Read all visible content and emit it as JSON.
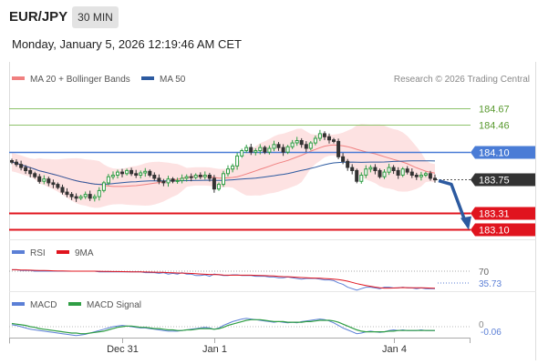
{
  "header": {
    "symbol": "EUR/JPY",
    "timeframe": "30 MIN",
    "timestamp": "Monday, January 5, 2026 12:19:46 AM CET"
  },
  "colors": {
    "ma20": "#f08080",
    "bollinger_fill": "#fde2e2",
    "ma50": "#2c5aa0",
    "resistance": "#8dc26a",
    "resistance_text": "#5a9a30",
    "pivot": "#4a7cd6",
    "support": "#e0141e",
    "current": "#333333",
    "candle_up": "#2f9e44",
    "candle_down": "#333333",
    "rsi": "#5b7fd6",
    "rsi_ma": "#e0141e",
    "macd": "#5b7fd6",
    "macd_signal": "#2f9e44",
    "arrow": "#2c5aa0"
  },
  "chart_data": {
    "type": "candlestick",
    "legend": {
      "ma20": "MA 20 + Bollinger Bands",
      "ma50": "MA 50"
    },
    "credit": "Research © 2026 Trading Central",
    "price_levels": [
      {
        "name": "resistance-2",
        "value": 184.67,
        "label": "184.67",
        "kind": "resistance"
      },
      {
        "name": "resistance-1",
        "value": 184.46,
        "label": "184.46",
        "kind": "resistance"
      },
      {
        "name": "pivot",
        "value": 184.1,
        "label": "184.10",
        "kind": "pivot"
      },
      {
        "name": "current-price",
        "value": 183.75,
        "label": "183.75",
        "kind": "current"
      },
      {
        "name": "support-1",
        "value": 183.31,
        "label": "183.31",
        "kind": "support"
      },
      {
        "name": "support-2",
        "value": 183.1,
        "label": "183.10",
        "kind": "support"
      }
    ],
    "price_range": [
      183.0,
      184.92
    ],
    "closes": [
      183.97,
      183.94,
      183.9,
      183.86,
      183.82,
      183.78,
      183.72,
      183.75,
      183.7,
      183.68,
      183.64,
      183.58,
      183.55,
      183.52,
      183.5,
      183.52,
      183.55,
      183.5,
      183.52,
      183.6,
      183.7,
      183.78,
      183.8,
      183.84,
      183.82,
      183.86,
      183.82,
      183.8,
      183.83,
      183.85,
      183.8,
      183.76,
      183.72,
      183.7,
      183.75,
      183.72,
      183.73,
      183.76,
      183.78,
      183.77,
      183.8,
      183.78,
      183.8,
      183.76,
      183.62,
      183.68,
      183.82,
      183.88,
      183.92,
      184.05,
      184.12,
      184.16,
      184.1,
      184.12,
      184.16,
      184.1,
      184.15,
      184.2,
      184.16,
      184.1,
      184.17,
      184.22,
      184.25,
      184.2,
      184.15,
      184.22,
      184.28,
      184.34,
      184.3,
      184.26,
      184.24,
      184.04,
      183.98,
      183.9,
      183.86,
      183.72,
      183.8,
      183.88,
      183.9,
      183.86,
      183.78,
      183.84,
      183.9,
      183.86,
      183.8,
      183.88,
      183.84,
      183.8,
      183.78,
      183.8,
      183.82,
      183.76,
      183.74
    ],
    "projection_target": 183.1,
    "x_tick_labels": [
      {
        "label": "Dec 31",
        "index": 24
      },
      {
        "label": "Jan 1",
        "index": 44
      },
      {
        "label": "Jan 4",
        "index": 83
      }
    ],
    "rsi": {
      "legend": "RSI",
      "ma_legend": "9MA",
      "level_label": "70",
      "value_label": "35.73",
      "values": [
        62,
        62,
        61,
        61,
        61,
        60,
        60,
        60,
        60,
        60,
        60,
        60,
        60,
        60,
        60,
        60,
        60,
        60,
        60,
        59,
        59,
        59,
        59,
        59,
        59,
        59,
        59,
        59,
        59,
        58,
        58,
        58,
        57,
        58,
        56,
        57,
        56,
        58,
        56,
        56,
        54,
        54,
        55,
        53,
        56,
        55,
        54,
        54,
        55,
        55,
        54,
        54,
        54,
        53,
        53,
        53,
        52,
        52,
        51,
        51,
        52,
        51,
        50,
        49,
        50,
        50,
        50,
        49,
        48,
        48,
        47,
        44,
        42,
        38,
        36,
        34,
        36,
        38,
        38,
        37,
        36,
        38,
        38,
        37,
        37,
        38,
        37,
        37,
        36,
        37,
        36,
        36,
        36
      ]
    },
    "macd": {
      "legend": "MACD",
      "signal_legend": "MACD Signal",
      "zero_label": "0",
      "value_label": "-0.06",
      "values": [
        0.03,
        0.02,
        0.0,
        -0.02,
        -0.04,
        -0.05,
        -0.06,
        -0.07,
        -0.08,
        -0.09,
        -0.1,
        -0.11,
        -0.12,
        -0.13,
        -0.14,
        -0.13,
        -0.12,
        -0.1,
        -0.08,
        -0.06,
        -0.04,
        -0.02,
        0.0,
        0.01,
        0.02,
        0.01,
        0.0,
        -0.01,
        -0.02,
        -0.02,
        -0.03,
        -0.04,
        -0.05,
        -0.06,
        -0.07,
        -0.07,
        -0.07,
        -0.06,
        -0.05,
        -0.04,
        -0.03,
        -0.02,
        -0.01,
        -0.02,
        -0.04,
        -0.02,
        0.02,
        0.05,
        0.08,
        0.1,
        0.12,
        0.13,
        0.12,
        0.11,
        0.1,
        0.09,
        0.08,
        0.07,
        0.08,
        0.07,
        0.06,
        0.07,
        0.06,
        0.08,
        0.09,
        0.1,
        0.11,
        0.12,
        0.11,
        0.09,
        0.06,
        0.02,
        -0.02,
        -0.05,
        -0.08,
        -0.11,
        -0.1,
        -0.08,
        -0.07,
        -0.08,
        -0.09,
        -0.08,
        -0.06,
        -0.05,
        -0.06,
        -0.05,
        -0.06,
        -0.06,
        -0.06,
        -0.05,
        -0.06,
        -0.06,
        -0.06
      ],
      "signal": [
        0.05,
        0.04,
        0.03,
        0.02,
        0.0,
        -0.01,
        -0.03,
        -0.04,
        -0.05,
        -0.06,
        -0.07,
        -0.08,
        -0.09,
        -0.1,
        -0.1,
        -0.11,
        -0.11,
        -0.1,
        -0.09,
        -0.08,
        -0.07,
        -0.05,
        -0.03,
        -0.01,
        0.0,
        0.01,
        0.01,
        0.0,
        -0.01,
        -0.01,
        -0.02,
        -0.03,
        -0.03,
        -0.04,
        -0.05,
        -0.05,
        -0.06,
        -0.06,
        -0.05,
        -0.05,
        -0.04,
        -0.03,
        -0.03,
        -0.03,
        -0.04,
        -0.03,
        -0.01,
        0.02,
        0.04,
        0.06,
        0.08,
        0.1,
        0.11,
        0.11,
        0.11,
        0.1,
        0.09,
        0.08,
        0.08,
        0.08,
        0.07,
        0.07,
        0.07,
        0.07,
        0.08,
        0.08,
        0.09,
        0.1,
        0.1,
        0.1,
        0.09,
        0.07,
        0.04,
        0.01,
        -0.02,
        -0.05,
        -0.07,
        -0.08,
        -0.08,
        -0.08,
        -0.08,
        -0.08,
        -0.07,
        -0.07,
        -0.06,
        -0.06,
        -0.06,
        -0.06,
        -0.06,
        -0.06,
        -0.06,
        -0.06,
        -0.06
      ]
    }
  }
}
